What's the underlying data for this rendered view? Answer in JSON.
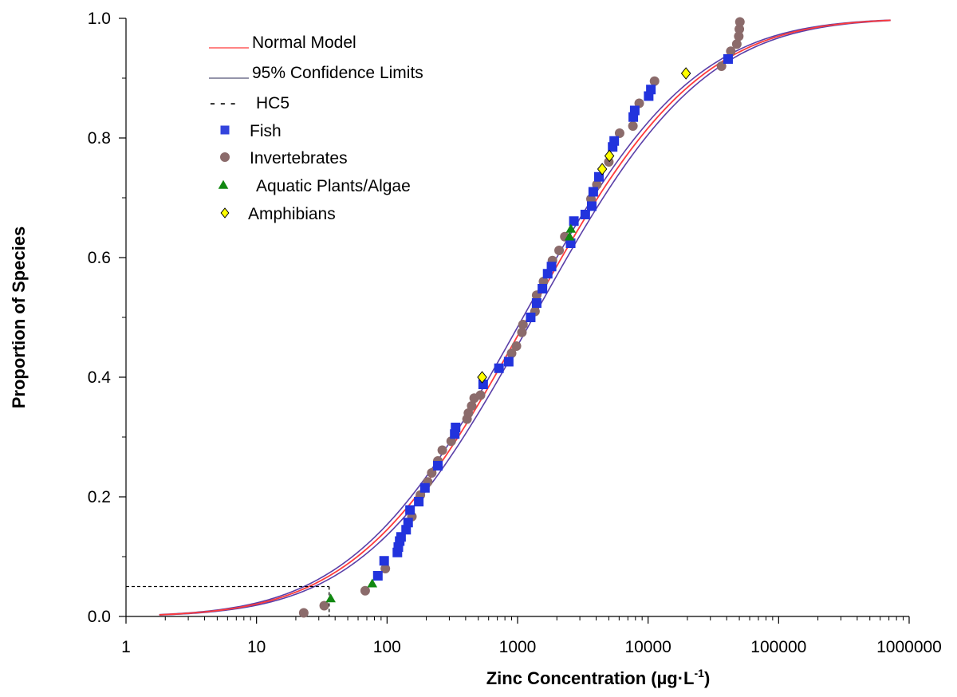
{
  "chart_data": {
    "type": "scatter",
    "xlabel": "Zinc Concentration (µg·L",
    "xlabel_sup": "-1",
    "xlabel_close": ")",
    "ylabel": "Proportion of Species",
    "xscale": "log",
    "xlim": [
      1,
      1000000
    ],
    "ylim": [
      0,
      1
    ],
    "x_ticks": [
      "1",
      "10",
      "100",
      "1000",
      "10000",
      "100000",
      "1000000"
    ],
    "y_ticks": [
      "0.0",
      "0.2",
      "0.4",
      "0.6",
      "0.8",
      "1.0"
    ],
    "grid": false,
    "legend_position": "top-left",
    "legend": [
      {
        "label": "Normal Model",
        "kind": "line",
        "color": "#ff3b3b"
      },
      {
        "label": "95% Confidence Limits",
        "kind": "line",
        "color": "#555577"
      },
      {
        "label": "HC5",
        "kind": "dash",
        "color": "#000000",
        "prefix": "- - -"
      },
      {
        "label": "Fish",
        "kind": "square",
        "color": "#3344dd"
      },
      {
        "label": "Invertebrates",
        "kind": "circle",
        "color": "#8b6b6b"
      },
      {
        "label": "Aquatic Plants/Algae",
        "kind": "triangle",
        "color": "#118811"
      },
      {
        "label": "Amphibians",
        "kind": "diamond",
        "color": "#ffff00"
      }
    ],
    "model": {
      "median": 1200,
      "log_sd": 1.02,
      "lower_median": 1100,
      "upper_median": 1320,
      "x_range": [
        1.8,
        720000
      ]
    },
    "hc5": {
      "x": 36,
      "y": 0.05
    },
    "series": [
      {
        "name": "Fish",
        "marker": "square",
        "color": "#2233dd",
        "points": [
          [
            85,
            0.068
          ],
          [
            95,
            0.093
          ],
          [
            120,
            0.107
          ],
          [
            122,
            0.116
          ],
          [
            125,
            0.126
          ],
          [
            128,
            0.133
          ],
          [
            140,
            0.145
          ],
          [
            145,
            0.157
          ],
          [
            150,
            0.178
          ],
          [
            175,
            0.192
          ],
          [
            195,
            0.215
          ],
          [
            245,
            0.252
          ],
          [
            330,
            0.305
          ],
          [
            335,
            0.316
          ],
          [
            545,
            0.388
          ],
          [
            720,
            0.415
          ],
          [
            855,
            0.426
          ],
          [
            1260,
            0.5
          ],
          [
            1400,
            0.524
          ],
          [
            1550,
            0.548
          ],
          [
            1700,
            0.573
          ],
          [
            1820,
            0.585
          ],
          [
            2550,
            0.624
          ],
          [
            2700,
            0.661
          ],
          [
            3300,
            0.672
          ],
          [
            3700,
            0.686
          ],
          [
            3800,
            0.71
          ],
          [
            4200,
            0.735
          ],
          [
            5350,
            0.785
          ],
          [
            5500,
            0.795
          ],
          [
            7700,
            0.835
          ],
          [
            7900,
            0.846
          ],
          [
            10100,
            0.87
          ],
          [
            10500,
            0.881
          ],
          [
            41000,
            0.932
          ]
        ]
      },
      {
        "name": "Invertebrates",
        "marker": "circle",
        "color": "#8b6b6b",
        "points": [
          [
            23,
            0.006
          ],
          [
            33,
            0.018
          ],
          [
            68,
            0.043
          ],
          [
            97,
            0.08
          ],
          [
            155,
            0.167
          ],
          [
            180,
            0.203
          ],
          [
            205,
            0.225
          ],
          [
            220,
            0.24
          ],
          [
            245,
            0.26
          ],
          [
            265,
            0.278
          ],
          [
            310,
            0.293
          ],
          [
            410,
            0.33
          ],
          [
            420,
            0.34
          ],
          [
            445,
            0.352
          ],
          [
            465,
            0.365
          ],
          [
            520,
            0.37
          ],
          [
            900,
            0.44
          ],
          [
            980,
            0.452
          ],
          [
            1080,
            0.475
          ],
          [
            1100,
            0.488
          ],
          [
            1360,
            0.51
          ],
          [
            1400,
            0.537
          ],
          [
            1580,
            0.56
          ],
          [
            1850,
            0.595
          ],
          [
            2080,
            0.612
          ],
          [
            2300,
            0.635
          ],
          [
            3650,
            0.698
          ],
          [
            4050,
            0.722
          ],
          [
            5000,
            0.76
          ],
          [
            6050,
            0.808
          ],
          [
            7650,
            0.82
          ],
          [
            8550,
            0.858
          ],
          [
            11200,
            0.895
          ],
          [
            36500,
            0.92
          ],
          [
            43000,
            0.945
          ],
          [
            47800,
            0.957
          ],
          [
            49500,
            0.97
          ],
          [
            50000,
            0.982
          ],
          [
            50500,
            0.994
          ]
        ]
      },
      {
        "name": "Aquatic Plants/Algae",
        "marker": "triangle",
        "color": "#118811",
        "points": [
          [
            37,
            0.03
          ],
          [
            77,
            0.055
          ],
          [
            2500,
            0.635
          ],
          [
            2560,
            0.648
          ]
        ]
      },
      {
        "name": "Amphibians",
        "marker": "diamond",
        "color": "#ffff00",
        "points": [
          [
            535,
            0.4
          ],
          [
            4450,
            0.748
          ],
          [
            5050,
            0.77
          ],
          [
            19500,
            0.908
          ]
        ]
      }
    ]
  }
}
